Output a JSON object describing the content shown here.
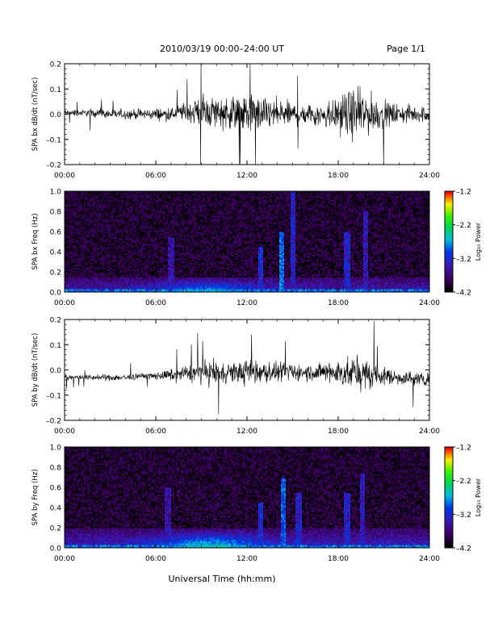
{
  "header": {
    "title": "2010/03/19   00:00–24:00 UT",
    "page": "Page 1/1"
  },
  "xlabel": "Universal Time (hh:mm)",
  "chart_data": [
    {
      "type": "line",
      "ylabel": "SPA bx dB/dt (nT/sec)",
      "ylim": [
        -0.2,
        0.2
      ],
      "yticks": [
        "0.2",
        "0.1",
        "0.0",
        "–0.1",
        "–0.2"
      ],
      "xticks": [
        "00:00",
        "06:00",
        "12:00",
        "18:00",
        "24:00"
      ],
      "x_hours": [
        0,
        1,
        2,
        3,
        4,
        5,
        6,
        7,
        8,
        9,
        10,
        11,
        12,
        13,
        14,
        15,
        16,
        17,
        18,
        19,
        20,
        21,
        22,
        23,
        24
      ],
      "envelope": [
        0.02,
        0.02,
        0.025,
        0.03,
        0.03,
        0.03,
        0.035,
        0.04,
        0.06,
        0.09,
        0.1,
        0.1,
        0.12,
        0.1,
        0.09,
        0.07,
        0.07,
        0.08,
        0.11,
        0.15,
        0.13,
        0.08,
        0.06,
        0.05,
        0.05
      ],
      "offset": [
        0.005,
        0.005,
        0.005,
        0.0,
        0.0,
        0.0,
        0.0,
        0.0,
        0.01,
        0.01,
        0.01,
        0.005,
        0.0,
        0.0,
        0.0,
        0.0,
        0.0,
        0.0,
        0.0,
        0.0,
        0.0,
        0.0,
        0.0,
        0.0,
        0.0
      ]
    },
    {
      "type": "heatmap",
      "ylabel": "SPA bx Freq (Hz)",
      "ylim": [
        0.0,
        1.0
      ],
      "yticks": [
        "1.0",
        "0.8",
        "0.6",
        "0.4",
        "0.2",
        "0.0"
      ],
      "xticks": [
        "00:00",
        "06:00",
        "12:00",
        "18:00",
        "24:00"
      ],
      "colorbar": {
        "label": "Log₁₀ Power",
        "ticks": [
          "–1.2",
          "–2.2",
          "–3.2",
          "–4.2"
        ],
        "range": [
          -4.2,
          -1.2
        ]
      },
      "background_log_power": -4.0,
      "low_freq_band": {
        "freq_max": 0.15,
        "peak_log_power": -2.6,
        "peak_hour": 9.5
      },
      "bursts": [
        {
          "hour": 7.0,
          "freq_top": 0.55,
          "log_power": -3.5
        },
        {
          "hour": 12.9,
          "freq_top": 0.45,
          "log_power": -3.2
        },
        {
          "hour": 14.3,
          "freq_top": 0.6,
          "log_power": -2.9
        },
        {
          "hour": 15.0,
          "freq_top": 1.0,
          "log_power": -3.3
        },
        {
          "hour": 18.6,
          "freq_top": 0.6,
          "log_power": -3.3
        },
        {
          "hour": 19.8,
          "freq_top": 0.8,
          "log_power": -3.4
        }
      ]
    },
    {
      "type": "line",
      "ylabel": "SPA by dB/dt (nT/sec)",
      "ylim": [
        -0.2,
        0.2
      ],
      "yticks": [
        "0.2",
        "0.1",
        "0.0",
        "–0.1",
        "–0.2"
      ],
      "xticks": [
        "00:00",
        "06:00",
        "12:00",
        "18:00",
        "24:00"
      ],
      "x_hours": [
        0,
        1,
        2,
        3,
        4,
        5,
        6,
        7,
        8,
        9,
        10,
        11,
        12,
        13,
        14,
        15,
        16,
        17,
        18,
        19,
        20,
        21,
        22,
        23,
        24
      ],
      "envelope": [
        0.015,
        0.015,
        0.015,
        0.02,
        0.02,
        0.02,
        0.025,
        0.035,
        0.05,
        0.07,
        0.07,
        0.06,
        0.08,
        0.07,
        0.06,
        0.05,
        0.05,
        0.06,
        0.08,
        0.1,
        0.09,
        0.06,
        0.045,
        0.04,
        0.04
      ],
      "offset": [
        -0.03,
        -0.03,
        -0.03,
        -0.03,
        -0.03,
        -0.025,
        -0.025,
        -0.02,
        -0.015,
        -0.01,
        -0.01,
        -0.01,
        -0.01,
        -0.01,
        -0.01,
        -0.01,
        -0.01,
        -0.01,
        -0.01,
        -0.015,
        -0.02,
        -0.025,
        -0.03,
        -0.035,
        -0.035
      ]
    },
    {
      "type": "heatmap",
      "ylabel": "SPA by Freq (Hz)",
      "ylim": [
        0.0,
        1.0
      ],
      "yticks": [
        "1.0",
        "0.8",
        "0.6",
        "0.4",
        "0.2",
        "0.0"
      ],
      "xticks": [
        "00:00",
        "06:00",
        "12:00",
        "18:00",
        "24:00"
      ],
      "colorbar": {
        "label": "Log₁₀ Power",
        "ticks": [
          "–1.2",
          "–2.2",
          "–3.2",
          "–4.2"
        ],
        "range": [
          -4.2,
          -1.2
        ]
      },
      "background_log_power": -4.0,
      "low_freq_band": {
        "freq_max": 0.2,
        "peak_log_power": -2.4,
        "peak_hour": 9.5
      },
      "bursts": [
        {
          "hour": 6.8,
          "freq_top": 0.6,
          "log_power": -3.5
        },
        {
          "hour": 12.9,
          "freq_top": 0.45,
          "log_power": -3.2
        },
        {
          "hour": 14.4,
          "freq_top": 0.7,
          "log_power": -3.0
        },
        {
          "hour": 15.4,
          "freq_top": 0.55,
          "log_power": -3.3
        },
        {
          "hour": 18.6,
          "freq_top": 0.55,
          "log_power": -3.3
        },
        {
          "hour": 19.6,
          "freq_top": 0.75,
          "log_power": -3.4
        }
      ]
    }
  ]
}
